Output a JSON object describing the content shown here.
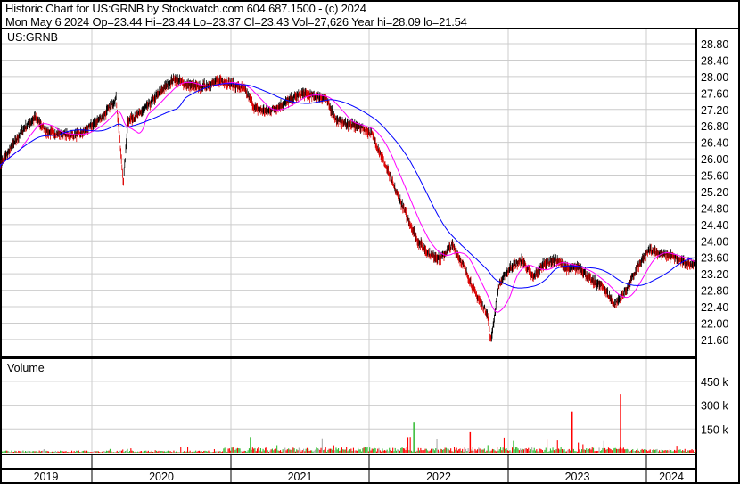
{
  "header": {
    "title": "Historic Chart for US:GRNB by Stockwatch.com 604.687.1500 - (c) 2024",
    "quote": "Mon May  6 2024  Op=23.44  Hi=23.44  Lo=23.37  Cl=23.43  Vol=27,626  Year hi=28.09  lo=21.54"
  },
  "chart_data": [
    {
      "type": "line",
      "panel": "price",
      "label": "US:GRNB",
      "ylim": [
        21.6,
        28.8
      ],
      "y_ticks": [
        "28.80",
        "28.40",
        "28.00",
        "27.60",
        "27.20",
        "26.80",
        "26.40",
        "26.00",
        "25.60",
        "25.20",
        "24.80",
        "24.40",
        "24.00",
        "23.60",
        "23.20",
        "22.80",
        "22.40",
        "22.00",
        "21.60"
      ],
      "series_colors": {
        "price": "#000000",
        "short_ma": "#ff00ff",
        "long_ma": "#0000ff"
      },
      "grid": true,
      "close": [
        [
          "2019-05-01",
          25.85
        ],
        [
          "2019-06-01",
          26.28
        ],
        [
          "2019-07-01",
          26.72
        ],
        [
          "2019-08-01",
          27.0
        ],
        [
          "2019-09-01",
          26.65
        ],
        [
          "2019-10-01",
          26.61
        ],
        [
          "2019-11-01",
          26.57
        ],
        [
          "2019-12-01",
          26.61
        ],
        [
          "2020-01-01",
          26.83
        ],
        [
          "2020-02-01",
          27.09
        ],
        [
          "2020-03-01",
          27.48
        ],
        [
          "2020-03-20",
          25.4
        ],
        [
          "2020-04-01",
          26.93
        ],
        [
          "2020-05-01",
          27.09
        ],
        [
          "2020-06-01",
          27.37
        ],
        [
          "2020-07-01",
          27.69
        ],
        [
          "2020-08-01",
          27.95
        ],
        [
          "2020-09-01",
          27.8
        ],
        [
          "2020-10-01",
          27.74
        ],
        [
          "2020-11-01",
          27.8
        ],
        [
          "2020-12-01",
          27.91
        ],
        [
          "2021-01-01",
          27.8
        ],
        [
          "2021-02-01",
          27.69
        ],
        [
          "2021-03-01",
          27.22
        ],
        [
          "2021-04-01",
          27.15
        ],
        [
          "2021-05-01",
          27.26
        ],
        [
          "2021-06-01",
          27.43
        ],
        [
          "2021-07-01",
          27.59
        ],
        [
          "2021-08-01",
          27.52
        ],
        [
          "2021-09-01",
          27.48
        ],
        [
          "2021-10-01",
          26.93
        ],
        [
          "2021-11-01",
          26.83
        ],
        [
          "2021-12-01",
          26.78
        ],
        [
          "2022-01-01",
          26.61
        ],
        [
          "2022-02-01",
          25.96
        ],
        [
          "2022-03-01",
          25.31
        ],
        [
          "2022-04-01",
          24.66
        ],
        [
          "2022-05-01",
          24.01
        ],
        [
          "2022-06-01",
          23.68
        ],
        [
          "2022-07-01",
          23.57
        ],
        [
          "2022-08-01",
          23.9
        ],
        [
          "2022-09-01",
          23.36
        ],
        [
          "2022-10-01",
          22.71
        ],
        [
          "2022-11-01",
          22.23
        ],
        [
          "2022-11-10",
          21.54
        ],
        [
          "2022-12-01",
          22.92
        ],
        [
          "2023-01-01",
          23.36
        ],
        [
          "2023-02-01",
          23.53
        ],
        [
          "2023-03-01",
          23.1
        ],
        [
          "2023-04-01",
          23.47
        ],
        [
          "2023-05-01",
          23.53
        ],
        [
          "2023-06-01",
          23.31
        ],
        [
          "2023-07-01",
          23.36
        ],
        [
          "2023-08-01",
          23.03
        ],
        [
          "2023-09-01",
          22.88
        ],
        [
          "2023-10-01",
          22.44
        ],
        [
          "2023-11-01",
          22.81
        ],
        [
          "2023-12-01",
          23.36
        ],
        [
          "2024-01-01",
          23.79
        ],
        [
          "2024-02-01",
          23.68
        ],
        [
          "2024-03-01",
          23.62
        ],
        [
          "2024-04-01",
          23.47
        ],
        [
          "2024-05-06",
          23.43
        ]
      ]
    },
    {
      "type": "bar",
      "panel": "volume",
      "label": "Volume",
      "ylim": [
        0,
        550000
      ],
      "y_ticks": [
        "450 k",
        "300 k",
        "150 k"
      ],
      "colors": {
        "up": "#33bb33",
        "down": "#ff0000",
        "flat": "#aaaaaa"
      },
      "spikes": [
        [
          "2022-04-20",
          190000,
          "up"
        ],
        [
          "2022-09-15",
          130000,
          "down"
        ],
        [
          "2023-06-10",
          260000,
          "down"
        ],
        [
          "2023-10-15",
          370000,
          "down"
        ]
      ]
    }
  ],
  "x_axis": {
    "years": [
      "2019",
      "2020",
      "2021",
      "2022",
      "2023",
      "2024"
    ]
  }
}
